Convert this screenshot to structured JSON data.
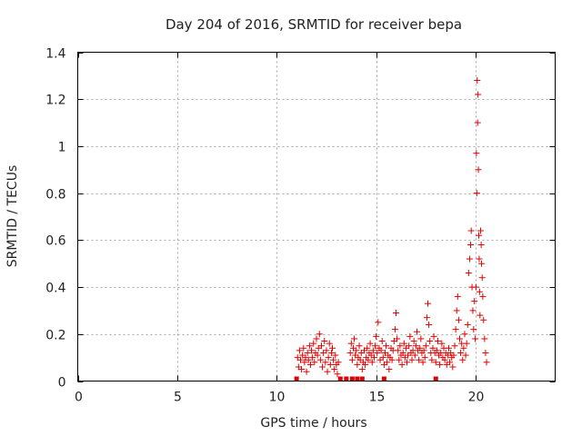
{
  "chart_data": {
    "type": "scatter",
    "title": "Day 204 of 2016, SRMTID for receiver bepa",
    "xlabel": "GPS time / hours",
    "ylabel": "SRMTID / TECUs",
    "xlim": [
      0,
      24
    ],
    "ylim": [
      0,
      1.4
    ],
    "xticks": [
      0,
      5,
      10,
      15,
      20
    ],
    "xtick_labels": [
      "0",
      "5",
      "10",
      "15",
      "20"
    ],
    "yticks": [
      0,
      0.2,
      0.4,
      0.6,
      0.8,
      1.0,
      1.2,
      1.4
    ],
    "ytick_labels": [
      "0",
      "0.2",
      "0.4",
      "0.6",
      "0.8",
      "1",
      "1.2",
      "1.4"
    ],
    "grid": true,
    "marker": "+",
    "color": "#e00000",
    "series": [
      {
        "name": "SRMTID",
        "points": [
          [
            11.05,
            0.1
          ],
          [
            11.1,
            0.06
          ],
          [
            11.15,
            0.13
          ],
          [
            11.2,
            0.09
          ],
          [
            11.25,
            0.05
          ],
          [
            11.3,
            0.11
          ],
          [
            11.35,
            0.14
          ],
          [
            11.4,
            0.08
          ],
          [
            11.45,
            0.1
          ],
          [
            11.5,
            0.04
          ],
          [
            11.55,
            0.12
          ],
          [
            11.6,
            0.09
          ],
          [
            11.65,
            0.15
          ],
          [
            11.7,
            0.07
          ],
          [
            11.75,
            0.13
          ],
          [
            11.8,
            0.1
          ],
          [
            11.85,
            0.16
          ],
          [
            11.9,
            0.08
          ],
          [
            11.95,
            0.12
          ],
          [
            12.0,
            0.18
          ],
          [
            12.05,
            0.11
          ],
          [
            12.1,
            0.14
          ],
          [
            12.15,
            0.2
          ],
          [
            12.2,
            0.09
          ],
          [
            12.25,
            0.15
          ],
          [
            12.3,
            0.06
          ],
          [
            12.35,
            0.12
          ],
          [
            12.4,
            0.17
          ],
          [
            12.45,
            0.08
          ],
          [
            12.5,
            0.13
          ],
          [
            12.55,
            0.04
          ],
          [
            12.6,
            0.1
          ],
          [
            12.65,
            0.16
          ],
          [
            12.7,
            0.07
          ],
          [
            12.75,
            0.12
          ],
          [
            12.8,
            0.14
          ],
          [
            12.85,
            0.09
          ],
          [
            12.9,
            0.05
          ],
          [
            12.95,
            0.11
          ],
          [
            13.0,
            0.07
          ],
          [
            13.05,
            0.03
          ],
          [
            13.1,
            0.08
          ],
          [
            13.7,
            0.12
          ],
          [
            13.75,
            0.16
          ],
          [
            13.8,
            0.09
          ],
          [
            13.85,
            0.14
          ],
          [
            13.9,
            0.18
          ],
          [
            13.95,
            0.11
          ],
          [
            14.0,
            0.13
          ],
          [
            14.05,
            0.07
          ],
          [
            14.1,
            0.1
          ],
          [
            14.15,
            0.15
          ],
          [
            14.2,
            0.09
          ],
          [
            14.25,
            0.12
          ],
          [
            14.3,
            0.05
          ],
          [
            14.35,
            0.08
          ],
          [
            14.4,
            0.13
          ],
          [
            14.45,
            0.07
          ],
          [
            14.5,
            0.1
          ],
          [
            14.55,
            0.14
          ],
          [
            14.6,
            0.09
          ],
          [
            14.65,
            0.12
          ],
          [
            14.7,
            0.16
          ],
          [
            14.75,
            0.11
          ],
          [
            14.8,
            0.08
          ],
          [
            14.85,
            0.13
          ],
          [
            14.9,
            0.1
          ],
          [
            14.95,
            0.15
          ],
          [
            15.0,
            0.19
          ],
          [
            15.05,
            0.12
          ],
          [
            15.1,
            0.25
          ],
          [
            15.15,
            0.14
          ],
          [
            15.2,
            0.09
          ],
          [
            15.25,
            0.13
          ],
          [
            15.3,
            0.17
          ],
          [
            15.35,
            0.1
          ],
          [
            15.4,
            0.07
          ],
          [
            15.45,
            0.12
          ],
          [
            15.5,
            0.15
          ],
          [
            15.55,
            0.08
          ],
          [
            15.6,
            0.11
          ],
          [
            15.65,
            0.05
          ],
          [
            15.7,
            0.1
          ],
          [
            15.75,
            0.14
          ],
          [
            15.8,
            0.09
          ],
          [
            15.85,
            0.13
          ],
          [
            15.9,
            0.17
          ],
          [
            15.95,
            0.22
          ],
          [
            16.0,
            0.29
          ],
          [
            16.05,
            0.18
          ],
          [
            16.1,
            0.13
          ],
          [
            16.15,
            0.09
          ],
          [
            16.2,
            0.15
          ],
          [
            16.25,
            0.11
          ],
          [
            16.3,
            0.07
          ],
          [
            16.35,
            0.12
          ],
          [
            16.4,
            0.16
          ],
          [
            16.45,
            0.1
          ],
          [
            16.5,
            0.14
          ],
          [
            16.55,
            0.08
          ],
          [
            16.6,
            0.11
          ],
          [
            16.65,
            0.15
          ],
          [
            16.7,
            0.19
          ],
          [
            16.75,
            0.12
          ],
          [
            16.8,
            0.09
          ],
          [
            16.85,
            0.13
          ],
          [
            16.9,
            0.17
          ],
          [
            16.95,
            0.11
          ],
          [
            17.0,
            0.15
          ],
          [
            17.05,
            0.21
          ],
          [
            17.1,
            0.13
          ],
          [
            17.15,
            0.09
          ],
          [
            17.2,
            0.14
          ],
          [
            17.25,
            0.18
          ],
          [
            17.3,
            0.12
          ],
          [
            17.35,
            0.08
          ],
          [
            17.4,
            0.13
          ],
          [
            17.45,
            0.1
          ],
          [
            17.5,
            0.15
          ],
          [
            17.55,
            0.27
          ],
          [
            17.6,
            0.33
          ],
          [
            17.65,
            0.24
          ],
          [
            17.7,
            0.17
          ],
          [
            17.75,
            0.12
          ],
          [
            17.8,
            0.09
          ],
          [
            17.85,
            0.14
          ],
          [
            17.9,
            0.19
          ],
          [
            17.95,
            0.12
          ],
          [
            18.0,
            0.08
          ],
          [
            18.05,
            0.13
          ],
          [
            18.1,
            0.17
          ],
          [
            18.15,
            0.11
          ],
          [
            18.2,
            0.07
          ],
          [
            18.25,
            0.12
          ],
          [
            18.3,
            0.16
          ],
          [
            18.35,
            0.1
          ],
          [
            18.4,
            0.14
          ],
          [
            18.45,
            0.09
          ],
          [
            18.5,
            0.12
          ],
          [
            18.55,
            0.07
          ],
          [
            18.6,
            0.11
          ],
          [
            18.65,
            0.14
          ],
          [
            18.7,
            0.08
          ],
          [
            18.75,
            0.12
          ],
          [
            18.8,
            0.1
          ],
          [
            18.85,
            0.06
          ],
          [
            18.9,
            0.11
          ],
          [
            18.95,
            0.15
          ],
          [
            19.0,
            0.22
          ],
          [
            19.05,
            0.3
          ],
          [
            19.1,
            0.36
          ],
          [
            19.15,
            0.26
          ],
          [
            19.2,
            0.18
          ],
          [
            19.25,
            0.12
          ],
          [
            19.3,
            0.16
          ],
          [
            19.35,
            0.09
          ],
          [
            19.4,
            0.14
          ],
          [
            19.45,
            0.2
          ],
          [
            19.5,
            0.11
          ],
          [
            19.55,
            0.16
          ],
          [
            19.6,
            0.24
          ],
          [
            19.65,
            0.46
          ],
          [
            19.7,
            0.52
          ],
          [
            19.75,
            0.58
          ],
          [
            19.78,
            0.64
          ],
          [
            19.82,
            0.4
          ],
          [
            19.86,
            0.3
          ],
          [
            19.9,
            0.22
          ],
          [
            19.94,
            0.34
          ],
          [
            19.98,
            0.18
          ],
          [
            20.02,
            0.4
          ],
          [
            20.04,
            0.97
          ],
          [
            20.06,
            0.8
          ],
          [
            20.08,
            1.28
          ],
          [
            20.1,
            1.1
          ],
          [
            20.12,
            1.22
          ],
          [
            20.14,
            0.9
          ],
          [
            20.16,
            0.62
          ],
          [
            20.18,
            0.52
          ],
          [
            20.2,
            0.38
          ],
          [
            20.22,
            0.28
          ],
          [
            20.25,
            0.64
          ],
          [
            20.28,
            0.58
          ],
          [
            20.3,
            0.5
          ],
          [
            20.33,
            0.44
          ],
          [
            20.36,
            0.36
          ],
          [
            20.4,
            0.26
          ],
          [
            20.45,
            0.18
          ],
          [
            20.5,
            0.12
          ],
          [
            20.55,
            0.08
          ]
        ]
      }
    ],
    "missing_data_markers_x": [
      11.0,
      13.2,
      13.5,
      13.8,
      14.05,
      14.3,
      15.4,
      18.0
    ]
  }
}
